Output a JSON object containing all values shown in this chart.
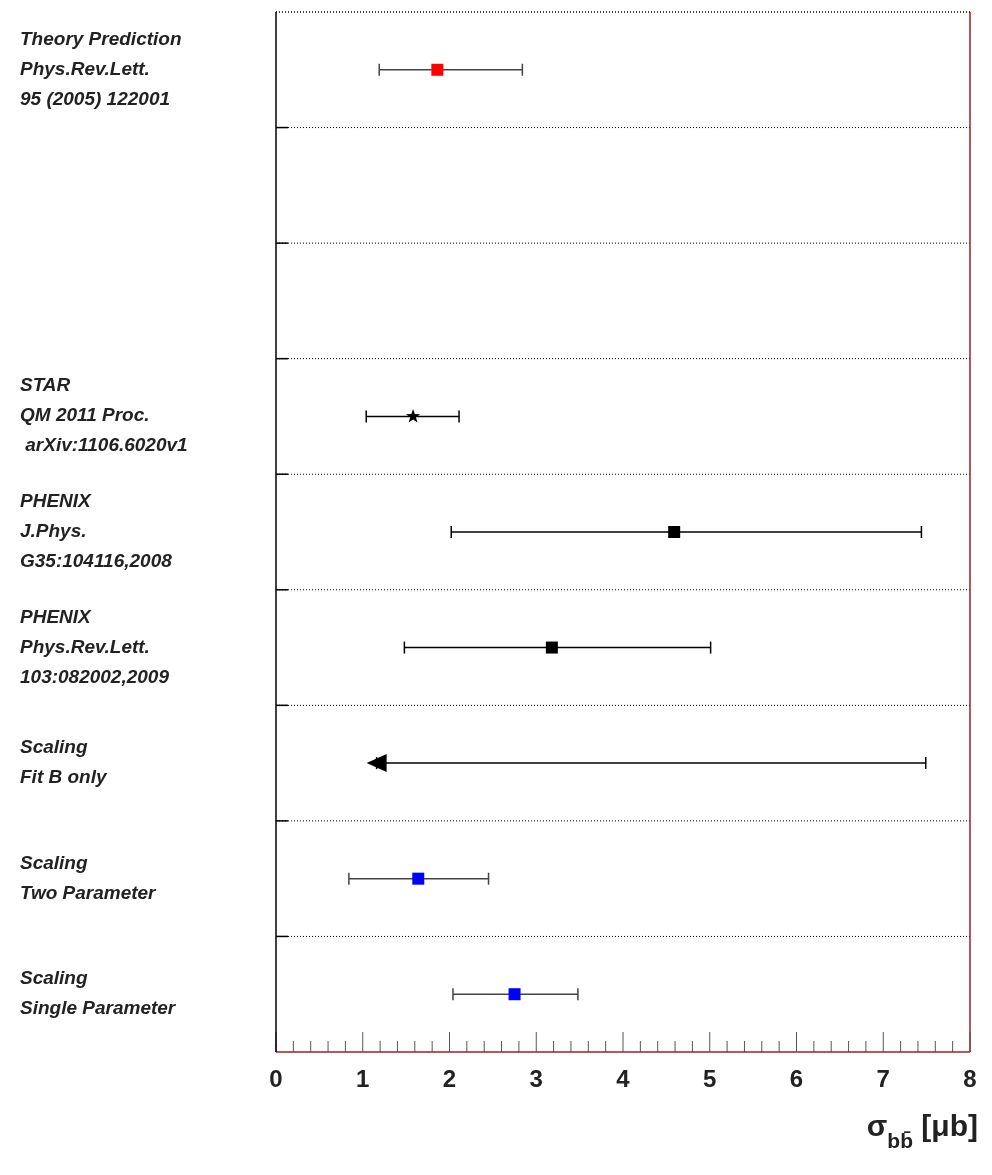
{
  "chart_data": {
    "type": "scatter",
    "orientation": "horizontal",
    "xlabel": "σ$_{bb̄}$ [μb]",
    "categories": [
      "Theory Prediction\nPhys.Rev.Lett.\n95 (2005) 122001",
      null,
      null,
      "STAR\nQM 2011 Proc.\n arXiv:1106.6020v1",
      "PHENIX\nJ.Phys.\nG35:104116,2008",
      "PHENIX\nPhys.Rev.Lett.\n103:082002,2009",
      "Scaling\nFit B only",
      "Scaling\nTwo Parameter",
      "Scaling\nSingle Parameter"
    ],
    "series": [
      {
        "color": "#ff0000",
        "marker": "square",
        "values": [
          1.86,
          null,
          null,
          null,
          null,
          null,
          null,
          null,
          null
        ],
        "errors": [
          [
            1.19,
            2.84
          ],
          null,
          null,
          null,
          null,
          null,
          null,
          null,
          null
        ]
      },
      {
        "color": "#000000",
        "marker": "star",
        "values": [
          null,
          null,
          null,
          1.58,
          null,
          null,
          null,
          null,
          null
        ],
        "errors": [
          null,
          null,
          null,
          [
            1.04,
            2.11
          ],
          null,
          null,
          null,
          null,
          null
        ]
      },
      {
        "color": "#000000",
        "marker": "square",
        "values": [
          null,
          null,
          null,
          null,
          4.59,
          3.18,
          null,
          null,
          null
        ],
        "errors": [
          null,
          null,
          null,
          null,
          [
            2.02,
            7.44
          ],
          [
            1.48,
            5.01
          ],
          null,
          null,
          null
        ]
      },
      {
        "color": "#000000",
        "marker": "triangle",
        "values": [
          null,
          null,
          null,
          null,
          null,
          null,
          1.16,
          null,
          null
        ],
        "errors": [
          null,
          null,
          null,
          null,
          null,
          null,
          [
            1.16,
            7.49
          ],
          null,
          null
        ]
      },
      {
        "color": "#0000ff",
        "marker": "square",
        "values": [
          null,
          null,
          null,
          null,
          null,
          null,
          null,
          1.64,
          2.75
        ],
        "errors": [
          null,
          null,
          null,
          null,
          null,
          null,
          null,
          [
            0.84,
            2.45
          ],
          [
            2.04,
            3.48
          ]
        ]
      }
    ],
    "xlim": [
      0,
      8
    ],
    "xticks": [
      0,
      1,
      2,
      3,
      4,
      5,
      6,
      7,
      8
    ],
    "grid": "y"
  }
}
